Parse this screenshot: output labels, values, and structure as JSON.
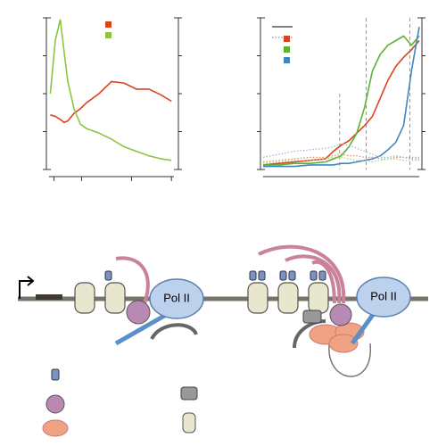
{
  "chart_data": [
    {
      "type": "line",
      "xlim": [
        0,
        100
      ],
      "xticks": [
        4,
        26,
        66,
        98
      ],
      "ylim": [
        0,
        100
      ],
      "yticks": [
        0,
        25,
        50,
        75,
        100
      ],
      "x": [
        1,
        5,
        9,
        12,
        15,
        20,
        25,
        30,
        40,
        50,
        60,
        70,
        80,
        90,
        98
      ],
      "series": [
        {
          "color": "#d9441c",
          "values": [
            36,
            35,
            33,
            31,
            32,
            37,
            40,
            44,
            50,
            58,
            57,
            53,
            53,
            49,
            45
          ]
        },
        {
          "color": "#8cc63f",
          "values": [
            50,
            85,
            99,
            78,
            58,
            40,
            30,
            27,
            24,
            20,
            15,
            12,
            9,
            7,
            6
          ]
        }
      ]
    },
    {
      "type": "line",
      "xlim": [
        0,
        100
      ],
      "ylim": [
        0,
        100
      ],
      "yticks": [
        0,
        25,
        50,
        75,
        100
      ],
      "vlines": [
        49,
        66,
        94
      ],
      "x": [
        0,
        10,
        20,
        30,
        40,
        45,
        50,
        55,
        60,
        65,
        70,
        75,
        80,
        85,
        90,
        95,
        100
      ],
      "series": [
        {
          "color": "#d9441c",
          "values": [
            3,
            4,
            5,
            6,
            7,
            12,
            16,
            19,
            24,
            29,
            35,
            47,
            59,
            68,
            74,
            79,
            85
          ]
        },
        {
          "color": "#5db031",
          "values": [
            3,
            3,
            4,
            4,
            5,
            7,
            9,
            15,
            24,
            41,
            65,
            76,
            82,
            85,
            88,
            82,
            88
          ]
        },
        {
          "color": "#3f86c4",
          "values": [
            2,
            2,
            2,
            3,
            3,
            3,
            4,
            4,
            5,
            6,
            7,
            9,
            13,
            18,
            29,
            65,
            94
          ]
        },
        {
          "color": "#e08a6a",
          "dotted": true,
          "values": [
            5,
            6,
            7,
            8,
            8,
            9,
            10,
            9,
            9,
            8,
            8,
            7,
            7,
            8,
            8,
            7,
            7
          ]
        },
        {
          "color": "#a8d27a",
          "dotted": true,
          "values": [
            4,
            5,
            6,
            6,
            7,
            8,
            8,
            7,
            6,
            6,
            5,
            6,
            7,
            7,
            6,
            6,
            6
          ]
        },
        {
          "color": "#8fb8de",
          "dotted": true,
          "values": [
            8,
            10,
            12,
            13,
            14,
            15,
            17,
            16,
            14,
            12,
            10,
            8,
            8,
            9,
            8,
            8,
            8
          ]
        }
      ]
    }
  ],
  "diagram": {
    "pol_ii_labels": [
      "Pol II",
      "Pol II"
    ]
  }
}
